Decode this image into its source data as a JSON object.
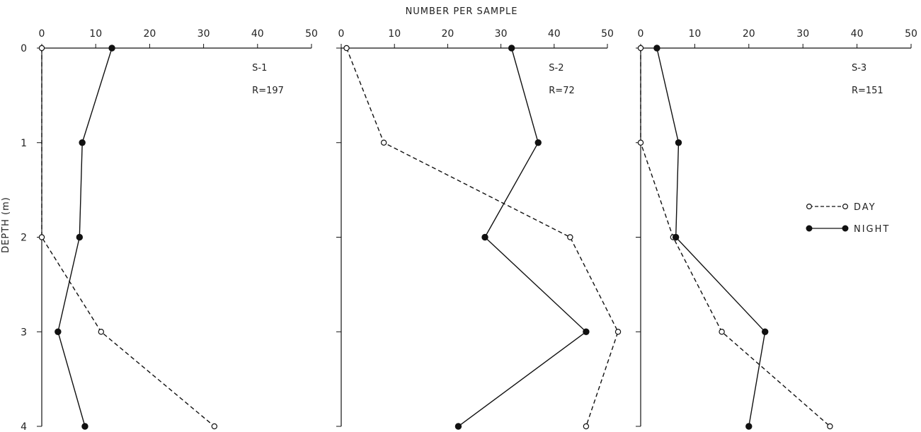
{
  "figure": {
    "top_label": "NUMBER PER SAMPLE",
    "ylabel": "DEPTH (m)",
    "legend": [
      {
        "label": "DAY",
        "style": "dashed-open"
      },
      {
        "label": "NIGHT",
        "style": "solid-filled"
      }
    ]
  },
  "chart_data": [
    {
      "type": "line",
      "panel_label": "S-1",
      "r_label": "R=197",
      "x_ticks": [
        0,
        10,
        20,
        30,
        40,
        50
      ],
      "y_ticks": [
        0,
        1,
        2,
        3,
        4
      ],
      "xlim": [
        0,
        50
      ],
      "ylim": [
        0,
        4
      ],
      "series": [
        {
          "name": "DAY",
          "points": [
            [
              0,
              0
            ],
            [
              0,
              1
            ],
            [
              0,
              2
            ],
            [
              11,
              3
            ],
            [
              32,
              4
            ]
          ],
          "marker_at": [
            0,
            2,
            3,
            4
          ]
        },
        {
          "name": "NIGHT",
          "points": [
            [
              13,
              0
            ],
            [
              7.5,
              1
            ],
            [
              7,
              2
            ],
            [
              3,
              3
            ],
            [
              8,
              4
            ]
          ],
          "marker_at": [
            0,
            1,
            2,
            3,
            4
          ]
        }
      ]
    },
    {
      "type": "line",
      "panel_label": "S-2",
      "r_label": "R=72",
      "x_ticks": [
        0,
        10,
        20,
        30,
        40,
        50
      ],
      "y_ticks": [
        0,
        1,
        2,
        3,
        4
      ],
      "xlim": [
        0,
        50
      ],
      "ylim": [
        0,
        4
      ],
      "series": [
        {
          "name": "DAY",
          "points": [
            [
              1,
              0
            ],
            [
              8,
              1
            ],
            [
              43,
              2
            ],
            [
              52,
              3
            ],
            [
              46,
              4
            ]
          ],
          "marker_at": [
            0,
            1,
            2,
            3,
            4
          ]
        },
        {
          "name": "NIGHT",
          "points": [
            [
              32,
              0
            ],
            [
              37,
              1
            ],
            [
              27,
              2
            ],
            [
              46,
              3
            ],
            [
              22,
              4
            ]
          ],
          "marker_at": [
            0,
            1,
            2,
            3,
            4
          ]
        }
      ]
    },
    {
      "type": "line",
      "panel_label": "S-3",
      "r_label": "R=151",
      "x_ticks": [
        0,
        10,
        20,
        30,
        40,
        50
      ],
      "y_ticks": [
        0,
        1,
        2,
        3,
        4
      ],
      "xlim": [
        0,
        50
      ],
      "ylim": [
        0,
        4
      ],
      "series": [
        {
          "name": "DAY",
          "points": [
            [
              0,
              0
            ],
            [
              0,
              1
            ],
            [
              6,
              2
            ],
            [
              15,
              3
            ],
            [
              35,
              4
            ]
          ],
          "marker_at": [
            0,
            1,
            2,
            3,
            4
          ]
        },
        {
          "name": "NIGHT",
          "points": [
            [
              3,
              0
            ],
            [
              7,
              1
            ],
            [
              6.5,
              2
            ],
            [
              23,
              3
            ],
            [
              20,
              4
            ]
          ],
          "marker_at": [
            0,
            1,
            2,
            3,
            4
          ]
        }
      ]
    }
  ]
}
